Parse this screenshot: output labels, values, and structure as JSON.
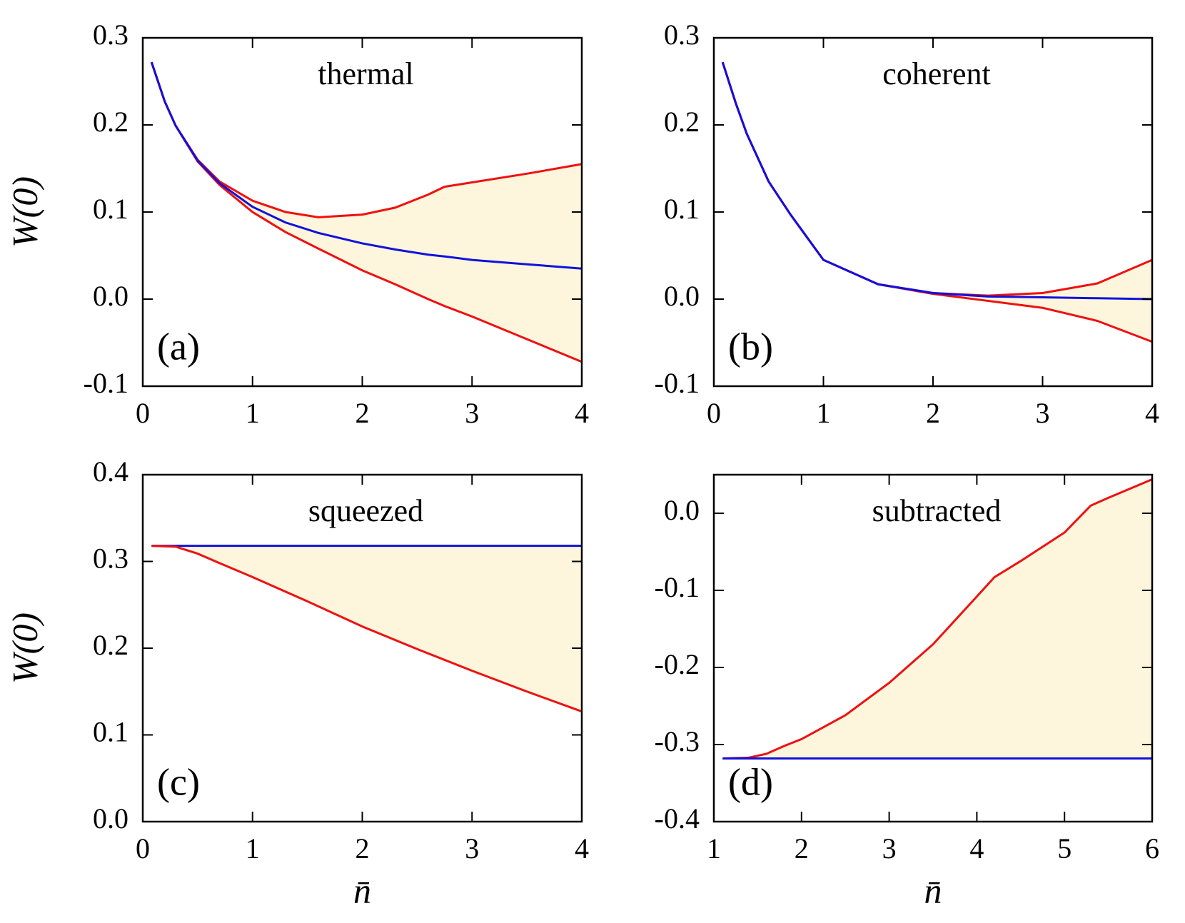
{
  "chart_data": [
    {
      "type": "line",
      "title": "thermal",
      "annotation": "(a)",
      "ylabel": "W(0)",
      "x": [
        0.08,
        0.2,
        0.3,
        0.5,
        0.7,
        1,
        1.3,
        1.6,
        2,
        2.3,
        2.6,
        2.75,
        3,
        3.5,
        4
      ],
      "series": [
        {
          "color": "#ee1111",
          "values": [
            0.272,
            0.227,
            0.199,
            0.16,
            0.135,
            0.113,
            0.1,
            0.094,
            0.097,
            0.105,
            0.12,
            0.129,
            0.134,
            0.144,
            0.155
          ]
        },
        {
          "color": "#ee1111",
          "values": [
            0.272,
            0.227,
            0.199,
            0.158,
            0.131,
            0.1,
            0.077,
            0.058,
            0.033,
            0.017,
            0.0,
            -0.008,
            -0.02,
            -0.046,
            -0.072
          ]
        },
        {
          "color": "#1111dd",
          "values": [
            0.272,
            0.227,
            0.199,
            0.159,
            0.133,
            0.106,
            0.088,
            0.076,
            0.064,
            0.057,
            0.051,
            0.049,
            0.045,
            0.04,
            0.035
          ]
        }
      ],
      "shade": "#fdf6dc",
      "xlim": [
        0,
        4
      ],
      "xticks": [
        0,
        1,
        2,
        3,
        4
      ],
      "ylim": [
        -0.1,
        0.3
      ],
      "yticks": [
        -0.1,
        {
          "value": 0,
          "label": "0.0"
        },
        0.1,
        0.2,
        0.3
      ]
    },
    {
      "type": "line",
      "title": "coherent",
      "annotation": "(b)",
      "x": [
        0.08,
        0.2,
        0.3,
        0.5,
        0.7,
        1,
        1.5,
        2,
        2.5,
        3,
        3.5,
        4
      ],
      "series": [
        {
          "color": "#ee1111",
          "values": [
            0.272,
            0.225,
            0.19,
            0.135,
            0.097,
            0.045,
            0.017,
            0.007,
            0.004,
            0.007,
            0.018,
            0.045
          ]
        },
        {
          "color": "#ee1111",
          "values": [
            0.272,
            0.225,
            0.19,
            0.135,
            0.097,
            0.045,
            0.017,
            0.006,
            -0.002,
            -0.01,
            -0.025,
            -0.049
          ]
        },
        {
          "color": "#1111dd",
          "values": [
            0.272,
            0.225,
            0.19,
            0.135,
            0.097,
            0.045,
            0.017,
            0.007,
            0.003,
            0.002,
            0.001,
            0.0
          ]
        }
      ],
      "shade": "#fdf6dc",
      "xlim": [
        0,
        4
      ],
      "xticks": [
        0,
        1,
        2,
        3,
        4
      ],
      "ylim": [
        -0.1,
        0.3
      ],
      "yticks": [
        -0.1,
        {
          "value": 0,
          "label": "0.0"
        },
        0.1,
        0.2,
        0.3
      ]
    },
    {
      "type": "line",
      "title": "squeezed",
      "annotation": "(c)",
      "ylabel": "W(0)",
      "xlabel": "n̄",
      "x": [
        0.08,
        0.3,
        0.5,
        0.7,
        1,
        1.5,
        2,
        2.5,
        3,
        3.5,
        4
      ],
      "series": [
        {
          "color": "#1111dd",
          "values": [
            0.318,
            0.318,
            0.318,
            0.318,
            0.318,
            0.318,
            0.318,
            0.318,
            0.318,
            0.318,
            0.318
          ]
        },
        {
          "color": "#ee1111",
          "values": [
            0.318,
            0.317,
            0.309,
            0.298,
            0.282,
            0.254,
            0.225,
            0.199,
            0.174,
            0.15,
            0.127
          ]
        }
      ],
      "shade": "#fdf6dc",
      "xlim": [
        0,
        4
      ],
      "xticks": [
        0,
        1,
        2,
        3,
        4
      ],
      "ylim": [
        0,
        0.4
      ],
      "yticks": [
        {
          "value": 0,
          "label": "0.0"
        },
        0.1,
        0.2,
        0.3,
        0.4
      ]
    },
    {
      "type": "line",
      "title": "subtracted",
      "annotation": "(d)",
      "xlabel": "n̄",
      "x": [
        1.1,
        1.4,
        1.6,
        1.8,
        2,
        2.5,
        3,
        3.5,
        4,
        4.2,
        4.5,
        5,
        5.3,
        5.5,
        6
      ],
      "series": [
        {
          "color": "#ee1111",
          "values": [
            -0.318,
            -0.317,
            -0.312,
            -0.302,
            -0.293,
            -0.262,
            -0.22,
            -0.17,
            -0.108,
            -0.083,
            -0.062,
            -0.025,
            0.01,
            0.02,
            0.044
          ]
        },
        {
          "color": "#1111dd",
          "values": [
            -0.318,
            -0.318,
            -0.318,
            -0.318,
            -0.318,
            -0.318,
            -0.318,
            -0.318,
            -0.318,
            -0.318,
            -0.318,
            -0.318,
            -0.318,
            -0.318,
            -0.318
          ]
        }
      ],
      "shade": "#fdf6dc",
      "xlim": [
        1,
        6
      ],
      "xticks": [
        1,
        2,
        3,
        4,
        5,
        6
      ],
      "ylim": [
        -0.4,
        0.05
      ],
      "yticks": [
        -0.4,
        -0.3,
        -0.2,
        -0.1,
        {
          "value": 0,
          "label": "0.0"
        }
      ]
    }
  ]
}
